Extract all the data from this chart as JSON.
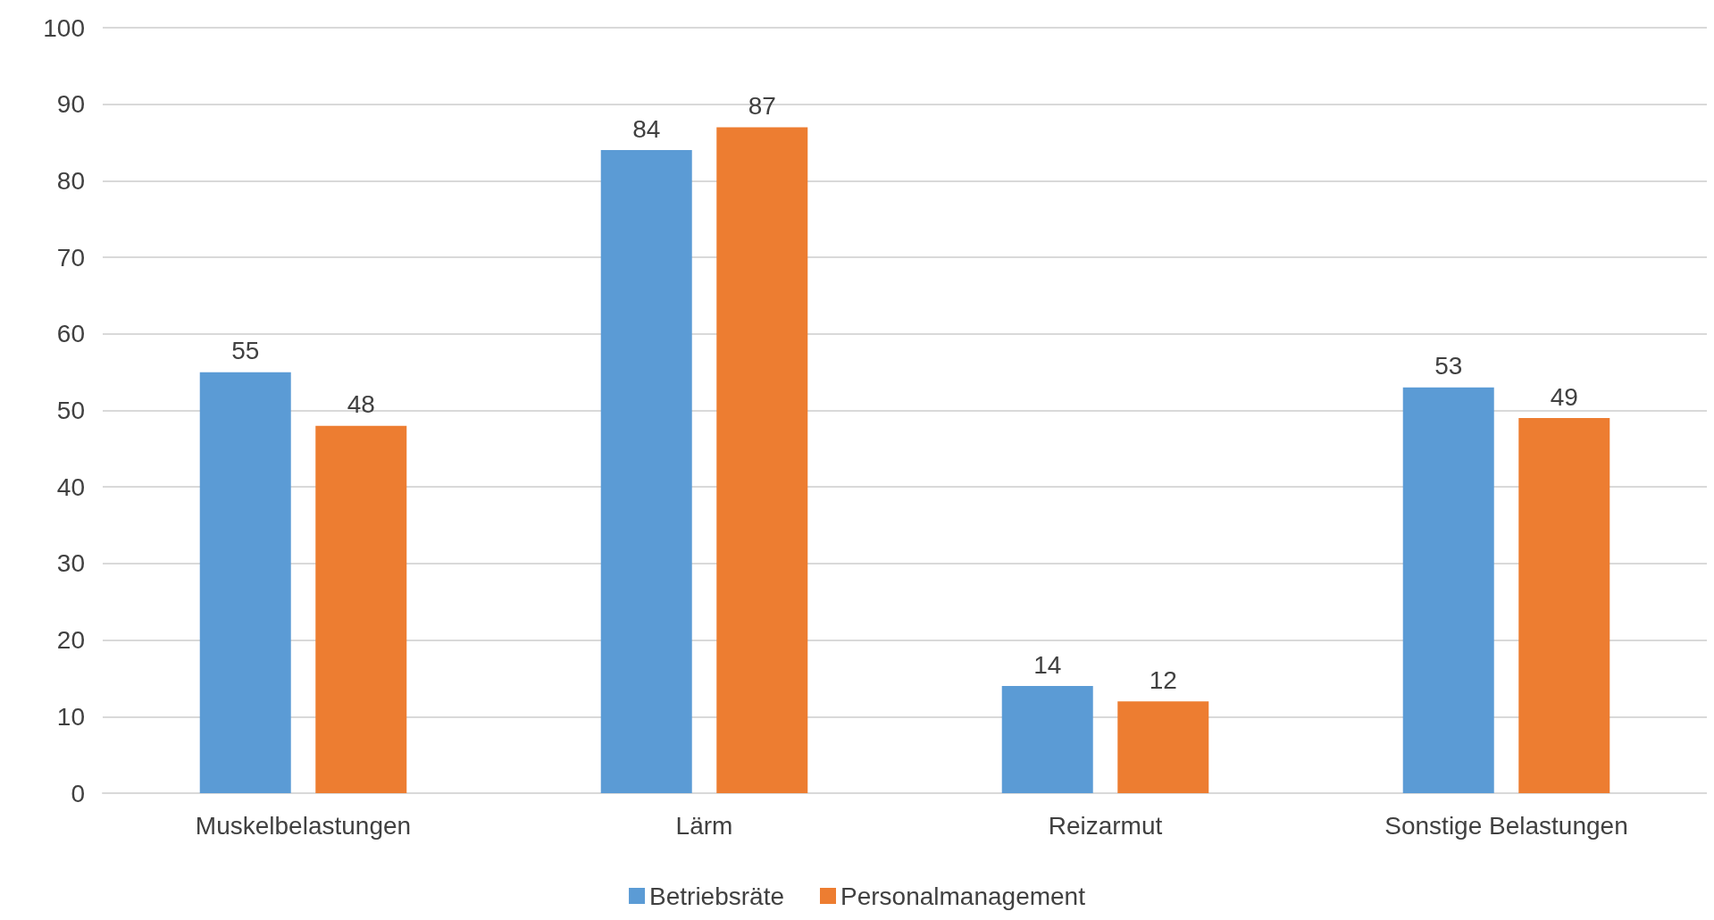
{
  "chart_data": {
    "type": "bar",
    "categories": [
      "Muskelbelastungen",
      "Lärm",
      "Reizarmut",
      "Sonstige Belastungen"
    ],
    "series": [
      {
        "name": "Betriebsräte",
        "color": "#5b9bd5",
        "values": [
          55,
          84,
          14,
          53
        ]
      },
      {
        "name": "Personalmanagement",
        "color": "#ed7d31",
        "values": [
          48,
          87,
          12,
          49
        ]
      }
    ],
    "ylim": [
      0,
      100
    ],
    "yticks": [
      0,
      10,
      20,
      30,
      40,
      50,
      60,
      70,
      80,
      90,
      100
    ],
    "grid": "y",
    "legend": "bottom",
    "data_labels": true
  }
}
